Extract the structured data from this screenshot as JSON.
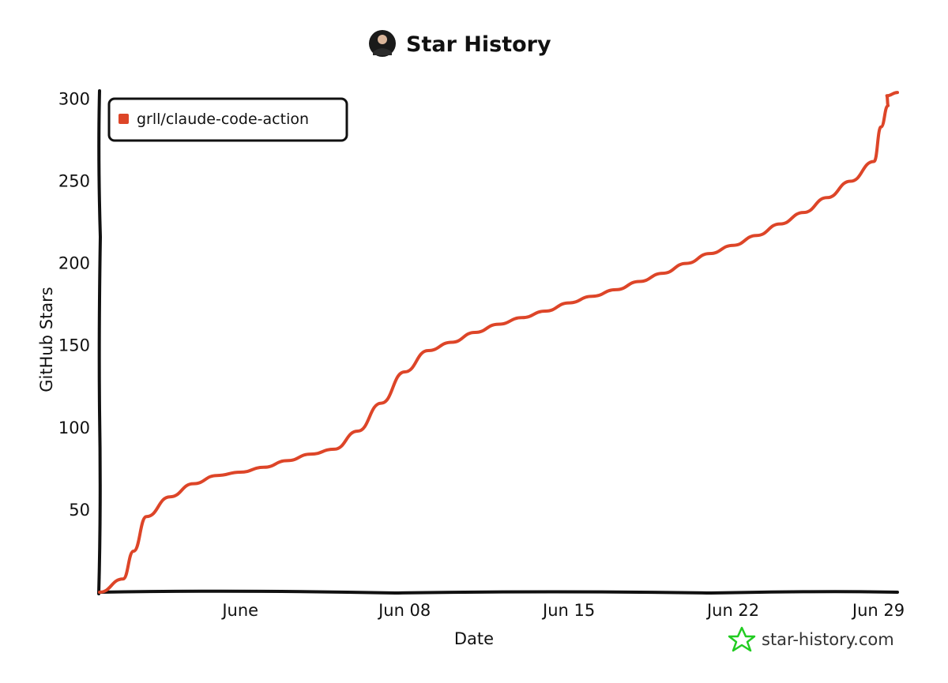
{
  "title": "Star History",
  "watermark": "star-history.com",
  "colors": {
    "series": "#dd4528",
    "axis": "#111111",
    "brand_star": "#22cc22",
    "avatar": "#1a1a1a"
  },
  "icons": {
    "avatar": "user-avatar-icon",
    "brand": "star-outline-icon"
  },
  "chart_data": {
    "type": "line",
    "title": "Star History",
    "xlabel": "Date",
    "ylabel": "GitHub Stars",
    "x_ticks": [
      {
        "label": "June",
        "date": "2025-06-01"
      },
      {
        "label": "Jun 08",
        "date": "2025-06-08"
      },
      {
        "label": "Jun 15",
        "date": "2025-06-15"
      },
      {
        "label": "Jun 22",
        "date": "2025-06-22"
      },
      {
        "label": "Jun 29",
        "date": "2025-06-29"
      }
    ],
    "y_ticks": [
      50,
      100,
      150,
      200,
      250,
      300
    ],
    "xlim": [
      "2025-05-26",
      "2025-06-29"
    ],
    "ylim": [
      0,
      305
    ],
    "grid": false,
    "legend_position": "top-left",
    "series": [
      {
        "name": "grll/claude-code-action",
        "color": "#dd4528",
        "points": [
          {
            "x": "2025-05-26",
            "y": 0
          },
          {
            "x": "2025-05-27",
            "y": 8
          },
          {
            "x": "2025-05-27",
            "y": 25
          },
          {
            "x": "2025-05-28",
            "y": 46
          },
          {
            "x": "2025-05-29",
            "y": 58
          },
          {
            "x": "2025-05-30",
            "y": 66
          },
          {
            "x": "2025-05-31",
            "y": 71
          },
          {
            "x": "2025-06-01",
            "y": 73
          },
          {
            "x": "2025-06-02",
            "y": 76
          },
          {
            "x": "2025-06-03",
            "y": 80
          },
          {
            "x": "2025-06-04",
            "y": 84
          },
          {
            "x": "2025-06-05",
            "y": 87
          },
          {
            "x": "2025-06-06",
            "y": 98
          },
          {
            "x": "2025-06-07",
            "y": 115
          },
          {
            "x": "2025-06-08",
            "y": 134
          },
          {
            "x": "2025-06-09",
            "y": 147
          },
          {
            "x": "2025-06-10",
            "y": 152
          },
          {
            "x": "2025-06-11",
            "y": 158
          },
          {
            "x": "2025-06-12",
            "y": 163
          },
          {
            "x": "2025-06-13",
            "y": 167
          },
          {
            "x": "2025-06-14",
            "y": 171
          },
          {
            "x": "2025-06-15",
            "y": 176
          },
          {
            "x": "2025-06-16",
            "y": 180
          },
          {
            "x": "2025-06-17",
            "y": 184
          },
          {
            "x": "2025-06-18",
            "y": 189
          },
          {
            "x": "2025-06-19",
            "y": 194
          },
          {
            "x": "2025-06-20",
            "y": 200
          },
          {
            "x": "2025-06-21",
            "y": 206
          },
          {
            "x": "2025-06-22",
            "y": 211
          },
          {
            "x": "2025-06-23",
            "y": 217
          },
          {
            "x": "2025-06-24",
            "y": 224
          },
          {
            "x": "2025-06-25",
            "y": 231
          },
          {
            "x": "2025-06-26",
            "y": 240
          },
          {
            "x": "2025-06-27",
            "y": 250
          },
          {
            "x": "2025-06-28",
            "y": 262
          },
          {
            "x": "2025-06-28",
            "y": 283
          },
          {
            "x": "2025-06-28",
            "y": 296
          },
          {
            "x": "2025-06-29",
            "y": 302
          },
          {
            "x": "2025-06-29",
            "y": 304
          }
        ]
      }
    ]
  }
}
